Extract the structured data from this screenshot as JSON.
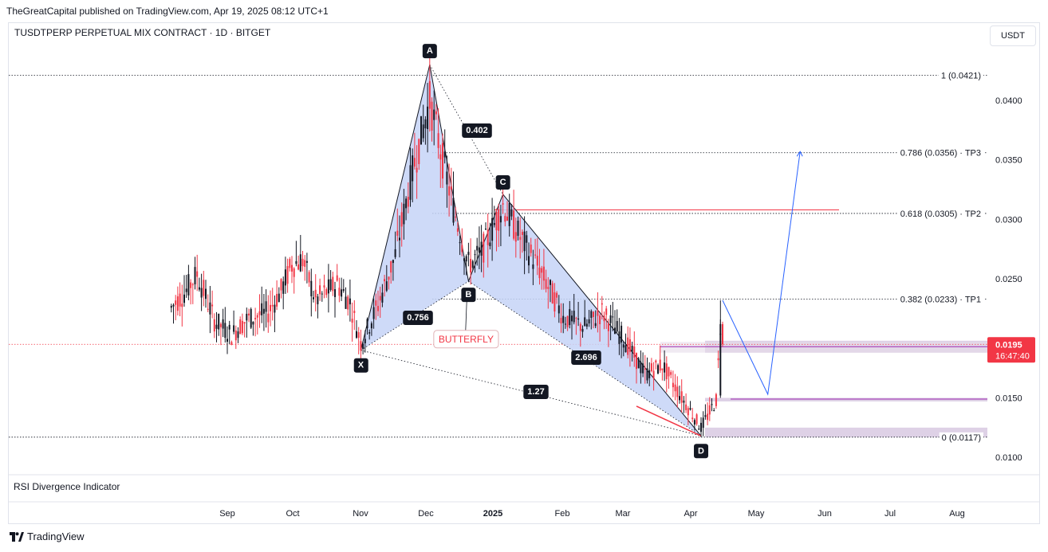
{
  "header": {
    "publisher": "TheGreatCapital published on TradingView.com, Apr 19, 2025 08:12 UTC+1",
    "symbol": "TUSDTPERP PERPETUAL MIX CONTRACT · 1D · BITGET",
    "currency": "USDT"
  },
  "indicator": {
    "label": "RSI Divergence Indicator"
  },
  "footer": {
    "brand": "TradingView"
  },
  "price_tag": {
    "price": "0.0195",
    "countdown": "16:47:40",
    "color": "#f23645"
  },
  "chart_data": {
    "type": "candlestick",
    "title": "TUSDTPERP PERPETUAL MIX CONTRACT · 1D · BITGET",
    "y_axis": {
      "ticks": [
        "0.0400",
        "0.0350",
        "0.0300",
        "0.0250",
        "0.0150",
        "0.0100"
      ],
      "range": [
        0.0086,
        0.0452
      ]
    },
    "x_axis": {
      "ticks": [
        "Sep",
        "Oct",
        "Nov",
        "Dec",
        "2025",
        "Feb",
        "Mar",
        "Apr",
        "May",
        "Jun",
        "Jul",
        "Aug"
      ]
    },
    "colors": {
      "up": "#131722",
      "down": "#f23645",
      "pattern_fill": "#c5d3f7",
      "projection": "#2962ff"
    },
    "pattern": {
      "name": "BUTTERFLY",
      "points": [
        {
          "label": "X",
          "date": "2024-11-02",
          "price": 0.019
        },
        {
          "label": "A",
          "date": "2024-12-04",
          "price": 0.043
        },
        {
          "label": "B",
          "date": "2024-12-22",
          "price": 0.0248
        },
        {
          "label": "C",
          "date": "2025-01-07",
          "price": 0.0321
        },
        {
          "label": "D",
          "date": "2025-04-09",
          "price": 0.0118
        }
      ],
      "ratios": [
        "0.756",
        "0.402",
        "2.696",
        "1.27"
      ]
    },
    "fib_levels": [
      {
        "label": "1 (0.0421)",
        "price": 0.0421
      },
      {
        "label": "0.786 (0.0356) · TP3",
        "price": 0.0356
      },
      {
        "label": "0.618 (0.0305) · TP2",
        "price": 0.0305
      },
      {
        "label": "0.382 (0.0233) · TP1",
        "price": 0.0233
      },
      {
        "label": "0 (0.0117)",
        "price": 0.0117
      }
    ],
    "zones": [
      {
        "from": 0.0188,
        "to": 0.0198
      },
      {
        "from": 0.0147,
        "to": 0.015
      },
      {
        "from": 0.0117,
        "to": 0.0125
      }
    ],
    "resistance_line": 0.0308,
    "projection": [
      {
        "date": "2025-04-19",
        "price": 0.0232
      },
      {
        "date": "2025-05-10",
        "price": 0.0153
      },
      {
        "date": "2025-05-25",
        "price": 0.0357
      }
    ],
    "last_price": 0.0195,
    "pivots": [
      [
        "2024-08-06",
        0.0226
      ],
      [
        "2024-08-12",
        0.0238
      ],
      [
        "2024-08-18",
        0.0254
      ],
      [
        "2024-08-26",
        0.0215
      ],
      [
        "2024-09-03",
        0.0203
      ],
      [
        "2024-09-10",
        0.0216
      ],
      [
        "2024-09-20",
        0.0222
      ],
      [
        "2024-09-26",
        0.024
      ],
      [
        "2024-10-01",
        0.0262
      ],
      [
        "2024-10-06",
        0.0266
      ],
      [
        "2024-10-12",
        0.0232
      ],
      [
        "2024-10-22",
        0.0246
      ],
      [
        "2024-10-28",
        0.023
      ],
      [
        "2024-11-02",
        0.0196
      ],
      [
        "2024-11-10",
        0.0228
      ],
      [
        "2024-11-18",
        0.027
      ],
      [
        "2024-11-26",
        0.034
      ],
      [
        "2024-12-04",
        0.04
      ],
      [
        "2024-12-10",
        0.035
      ],
      [
        "2024-12-15",
        0.031
      ],
      [
        "2024-12-22",
        0.0262
      ],
      [
        "2024-12-28",
        0.0272
      ],
      [
        "2025-01-07",
        0.0312
      ],
      [
        "2025-01-14",
        0.0288
      ],
      [
        "2025-01-24",
        0.0258
      ],
      [
        "2025-02-04",
        0.0218
      ],
      [
        "2025-02-14",
        0.021
      ],
      [
        "2025-02-22",
        0.0222
      ],
      [
        "2025-03-04",
        0.02
      ],
      [
        "2025-03-14",
        0.017
      ],
      [
        "2025-03-22",
        0.0178
      ],
      [
        "2025-03-31",
        0.015
      ],
      [
        "2025-04-09",
        0.0125
      ],
      [
        "2025-04-16",
        0.0148
      ],
      [
        "2025-04-18",
        0.021
      ],
      [
        "2025-04-19",
        0.0195
      ]
    ]
  }
}
